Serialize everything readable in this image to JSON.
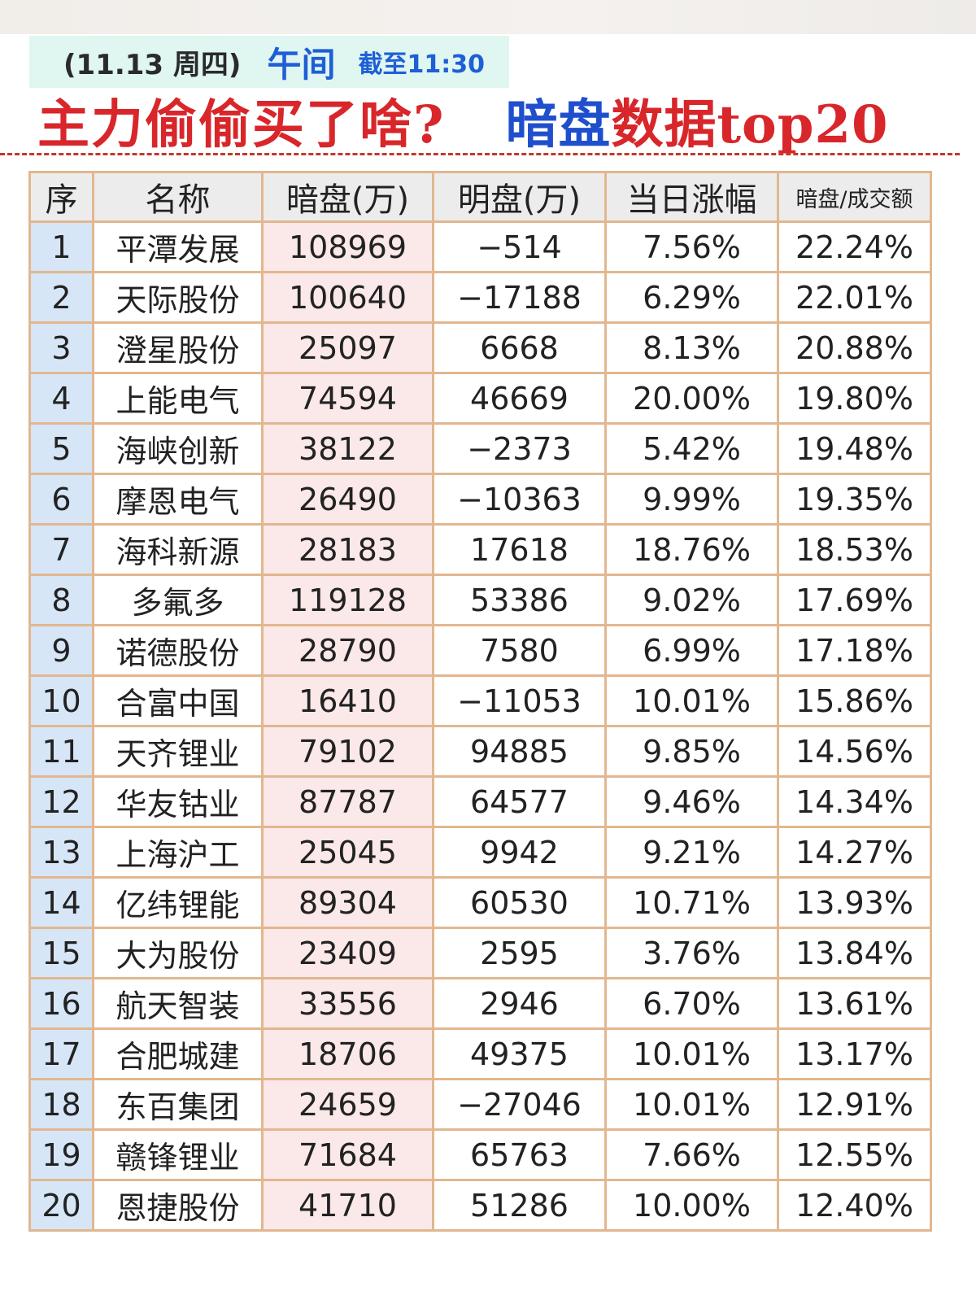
{
  "header": {
    "date": "(11.13 周四)",
    "period": "午间",
    "cutoff": "截至11:30",
    "headline_question": "主力偷偷买了啥?",
    "headline_title_part1": "暗盘",
    "headline_title_part2": "数据top20"
  },
  "table": {
    "columns": [
      "序",
      "名称",
      "暗盘(万)",
      "明盘(万)",
      "当日涨幅",
      "暗盘/成交额"
    ],
    "rows": [
      {
        "idx": "1",
        "name": "平潭发展",
        "dark": "108969",
        "light": "−514",
        "change": "7.56%",
        "ratio": "22.24%"
      },
      {
        "idx": "2",
        "name": "天际股份",
        "dark": "100640",
        "light": "−17188",
        "change": "6.29%",
        "ratio": "22.01%"
      },
      {
        "idx": "3",
        "name": "澄星股份",
        "dark": "25097",
        "light": "6668",
        "change": "8.13%",
        "ratio": "20.88%"
      },
      {
        "idx": "4",
        "name": "上能电气",
        "dark": "74594",
        "light": "46669",
        "change": "20.00%",
        "ratio": "19.80%"
      },
      {
        "idx": "5",
        "name": "海峡创新",
        "dark": "38122",
        "light": "−2373",
        "change": "5.42%",
        "ratio": "19.48%"
      },
      {
        "idx": "6",
        "name": "摩恩电气",
        "dark": "26490",
        "light": "−10363",
        "change": "9.99%",
        "ratio": "19.35%"
      },
      {
        "idx": "7",
        "name": "海科新源",
        "dark": "28183",
        "light": "17618",
        "change": "18.76%",
        "ratio": "18.53%"
      },
      {
        "idx": "8",
        "name": "多氟多",
        "dark": "119128",
        "light": "53386",
        "change": "9.02%",
        "ratio": "17.69%"
      },
      {
        "idx": "9",
        "name": "诺德股份",
        "dark": "28790",
        "light": "7580",
        "change": "6.99%",
        "ratio": "17.18%"
      },
      {
        "idx": "10",
        "name": "合富中国",
        "dark": "16410",
        "light": "−11053",
        "change": "10.01%",
        "ratio": "15.86%"
      },
      {
        "idx": "11",
        "name": "天齐锂业",
        "dark": "79102",
        "light": "94885",
        "change": "9.85%",
        "ratio": "14.56%"
      },
      {
        "idx": "12",
        "name": "华友钴业",
        "dark": "87787",
        "light": "64577",
        "change": "9.46%",
        "ratio": "14.34%"
      },
      {
        "idx": "13",
        "name": "上海沪工",
        "dark": "25045",
        "light": "9942",
        "change": "9.21%",
        "ratio": "14.27%"
      },
      {
        "idx": "14",
        "name": "亿纬锂能",
        "dark": "89304",
        "light": "60530",
        "change": "10.71%",
        "ratio": "13.93%"
      },
      {
        "idx": "15",
        "name": "大为股份",
        "dark": "23409",
        "light": "2595",
        "change": "3.76%",
        "ratio": "13.84%"
      },
      {
        "idx": "16",
        "name": "航天智装",
        "dark": "33556",
        "light": "2946",
        "change": "6.70%",
        "ratio": "13.61%"
      },
      {
        "idx": "17",
        "name": "合肥城建",
        "dark": "18706",
        "light": "49375",
        "change": "10.01%",
        "ratio": "13.17%"
      },
      {
        "idx": "18",
        "name": "东百集团",
        "dark": "24659",
        "light": "−27046",
        "change": "10.01%",
        "ratio": "12.91%"
      },
      {
        "idx": "19",
        "name": "赣锋锂业",
        "dark": "71684",
        "light": "65763",
        "change": "7.66%",
        "ratio": "12.55%"
      },
      {
        "idx": "20",
        "name": "恩捷股份",
        "dark": "41710",
        "light": "51286",
        "change": "10.00%",
        "ratio": "12.40%"
      }
    ]
  },
  "colors": {
    "red": "#d8262a",
    "blue": "#1f5fd6",
    "green": "#2d8a2d",
    "border": "#e2b78f"
  }
}
